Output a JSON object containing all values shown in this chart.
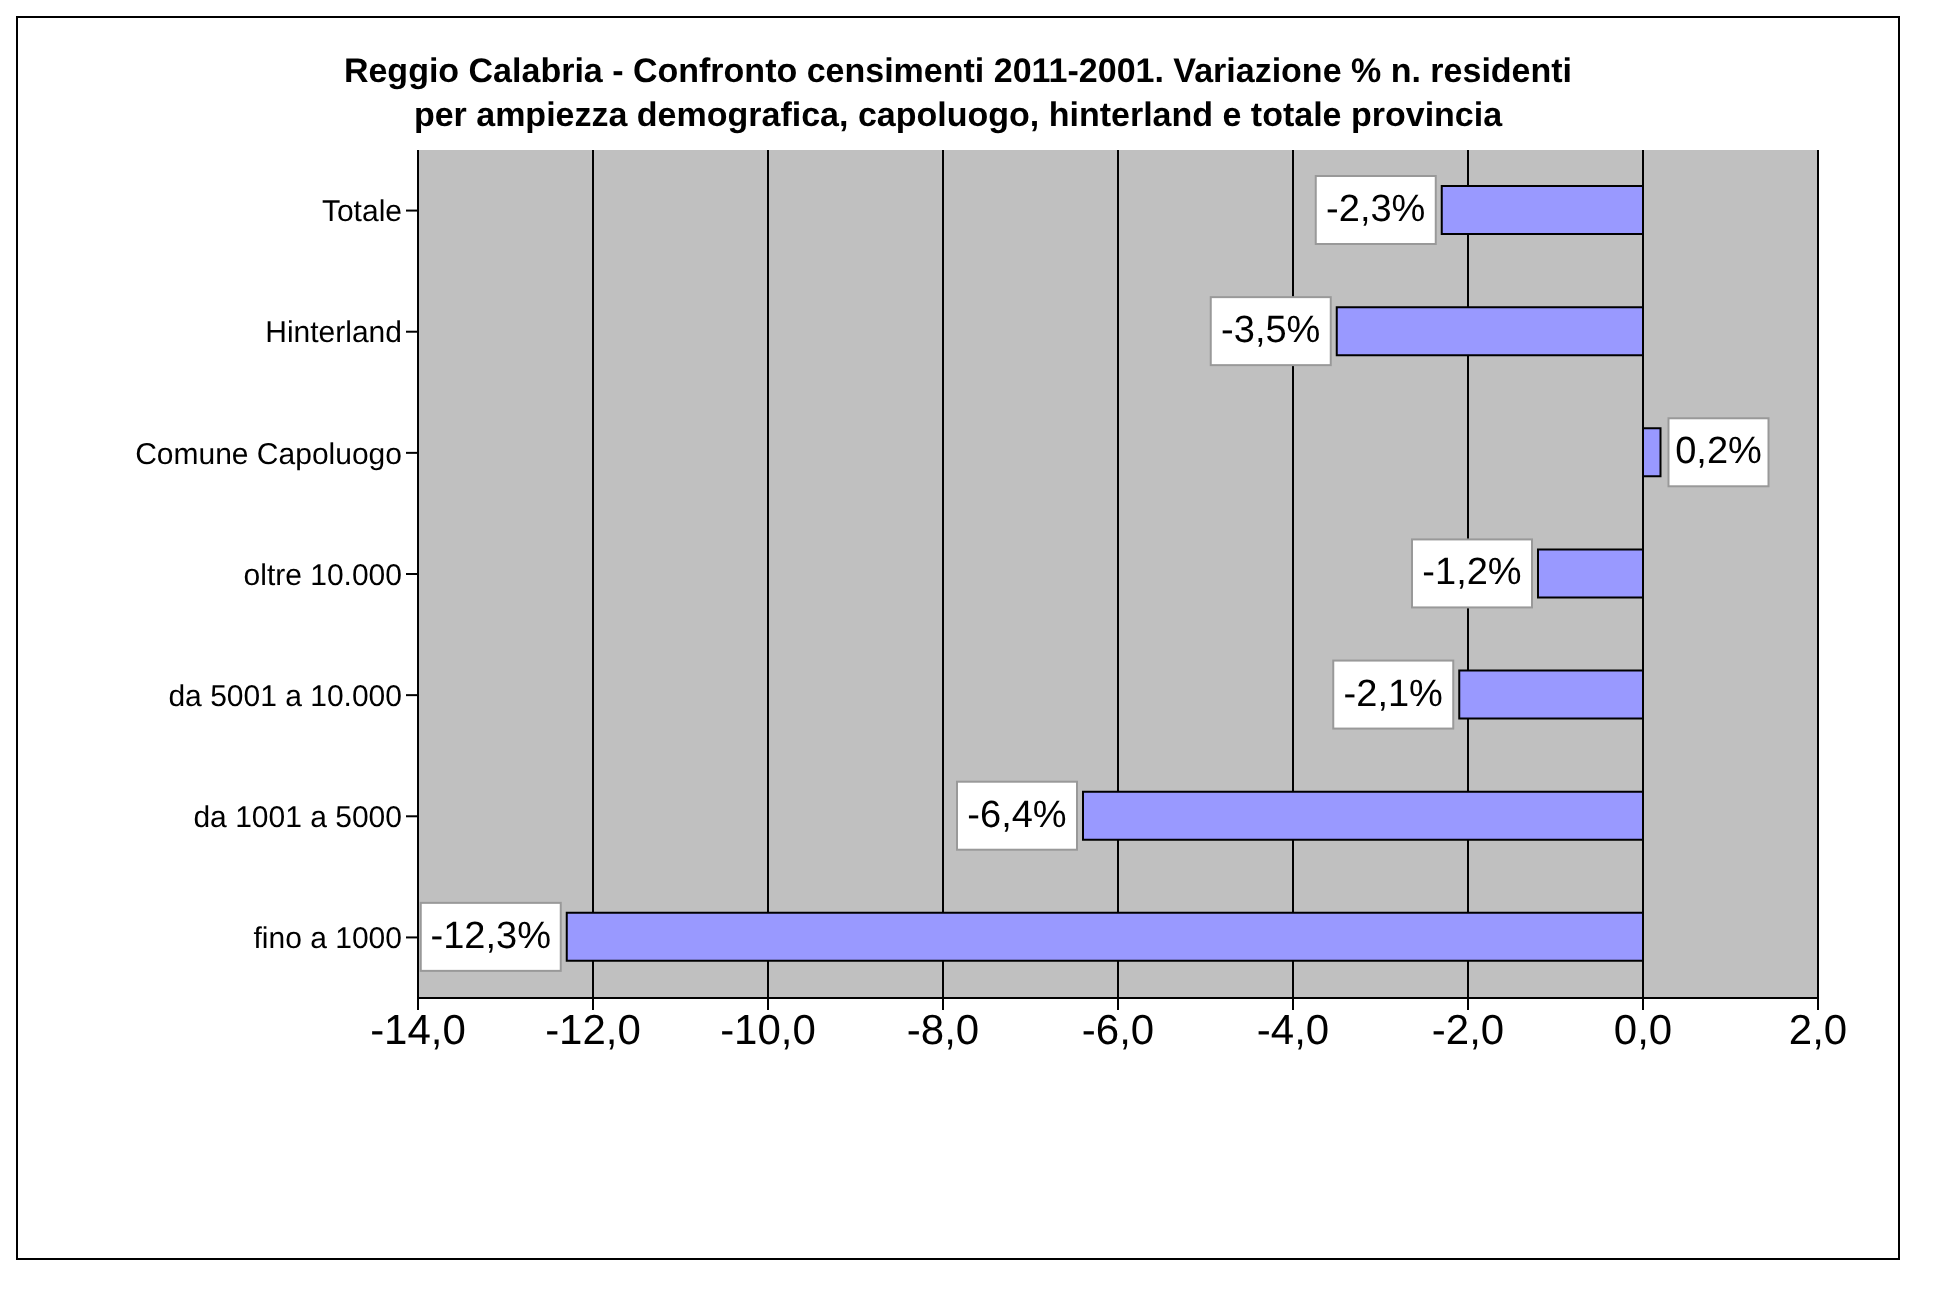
{
  "chart_data": {
    "type": "bar",
    "orientation": "horizontal",
    "title": "Reggio Calabria - Confronto censimenti 2011-2001. Variazione % n. residenti per ampiezza demografica, capoluogo, hinterland e totale provincia",
    "categories": [
      "Totale",
      "Hinterland",
      "Comune Capoluogo",
      "oltre 10.000",
      "da 5001 a 10.000",
      "da 1001 a 5000",
      "fino a 1000"
    ],
    "values": [
      -2.3,
      -3.5,
      0.2,
      -1.2,
      -2.1,
      -6.4,
      -12.3
    ],
    "value_labels": [
      "-2,3%",
      "-3,5%",
      "0,2%",
      "-1,2%",
      "-2,1%",
      "-6,4%",
      "-12,3%"
    ],
    "color": "#9999ff",
    "xlim": [
      -14,
      2
    ],
    "xticks": [
      {
        "value": -14,
        "label": "-14,0"
      },
      {
        "value": -12,
        "label": "-12,0"
      },
      {
        "value": -10,
        "label": "-10,0"
      },
      {
        "value": -8,
        "label": "-8,0"
      },
      {
        "value": -6,
        "label": "-6,0"
      },
      {
        "value": -4,
        "label": "-4,0"
      },
      {
        "value": -2,
        "label": "-2,0"
      },
      {
        "value": 0,
        "label": "0,0"
      },
      {
        "value": 2,
        "label": "2,0"
      }
    ],
    "grid": "x",
    "legend": false
  }
}
